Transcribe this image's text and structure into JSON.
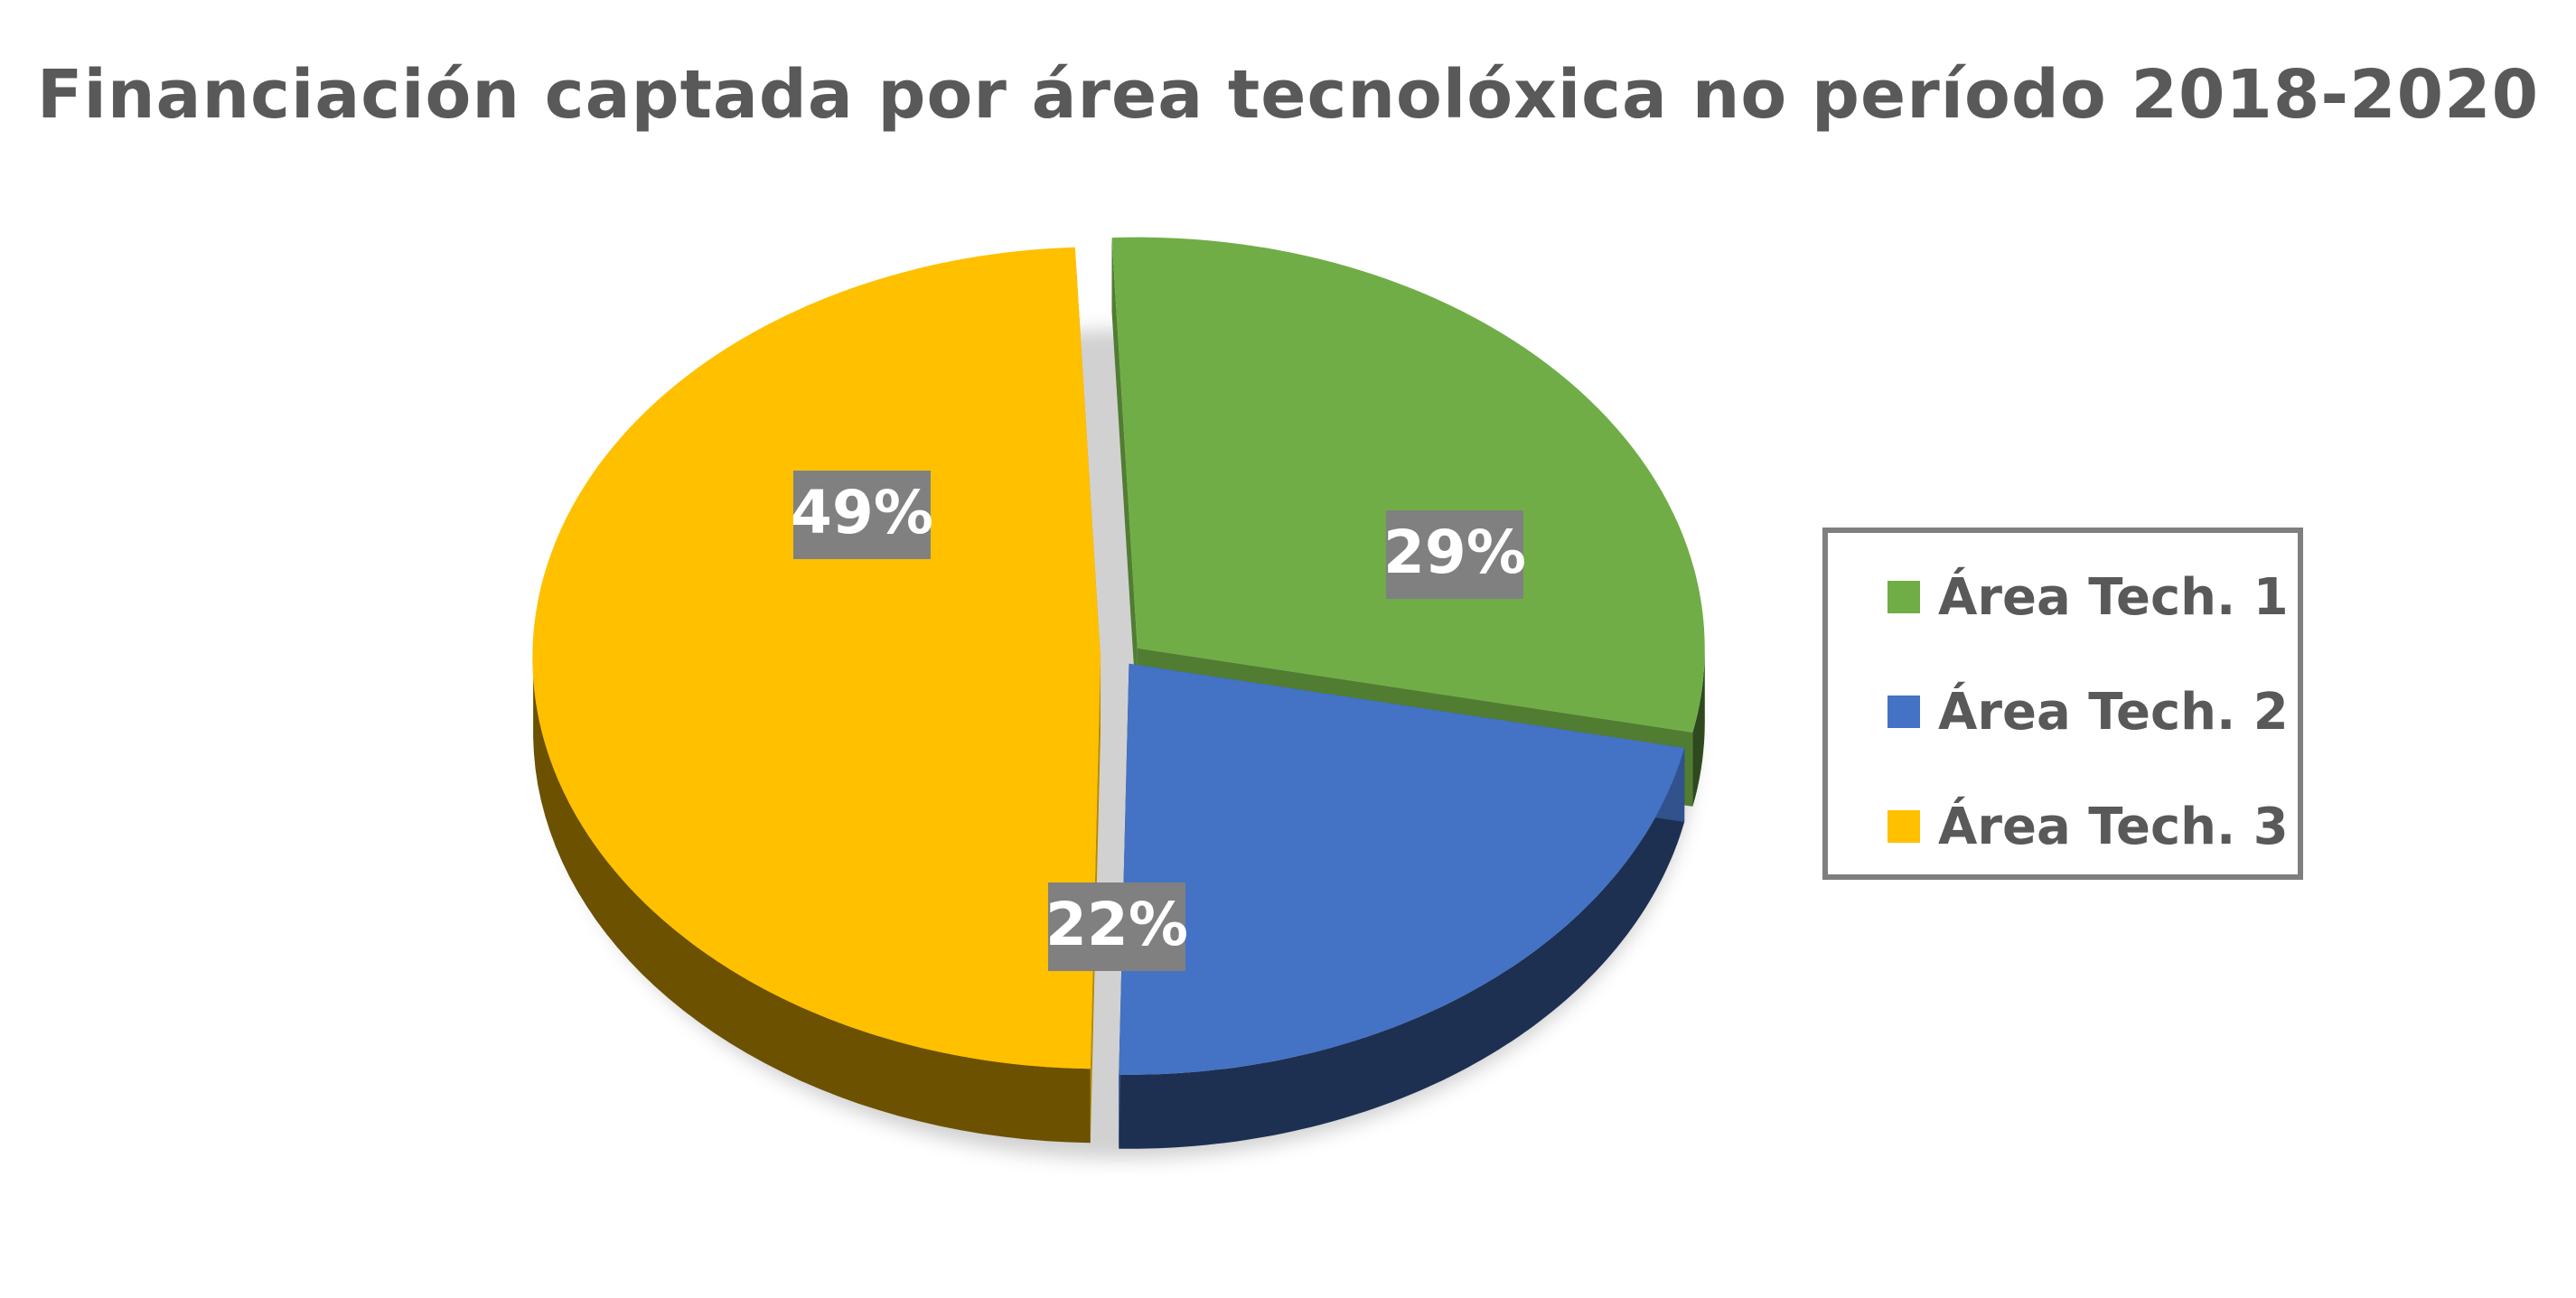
{
  "chart_data": {
    "type": "pie",
    "title": "Financiación captada por área tecnolóxica no período 2018-2020",
    "categories": [
      "Área Tech. 1",
      "Área Tech. 2",
      "Área Tech. 3"
    ],
    "values": [
      29,
      22,
      49
    ],
    "labels": [
      "29%",
      "22%",
      "49%"
    ],
    "colors": [
      "#70ad47",
      "#4472c4",
      "#ffc000"
    ],
    "label_box_color": "#808080",
    "legend_placement": "right",
    "exploded": true,
    "three_d": true
  }
}
